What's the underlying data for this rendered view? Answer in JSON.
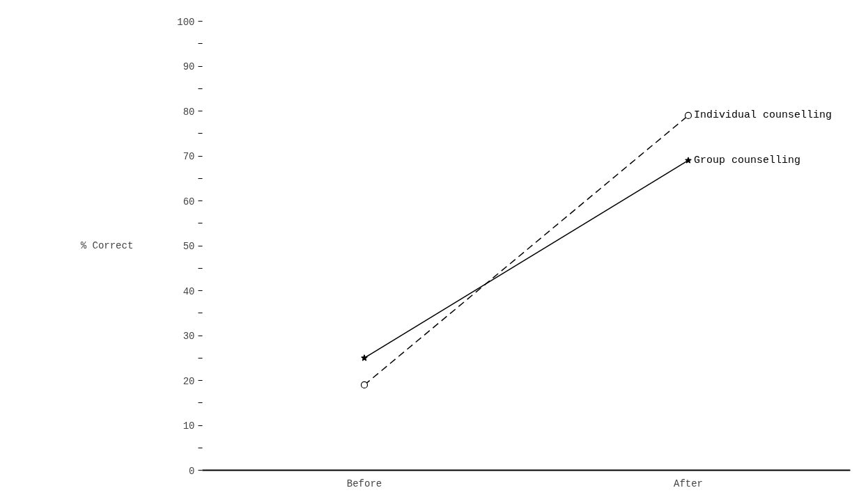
{
  "chart_data": {
    "type": "line",
    "ylabel": "% Correct",
    "categories": [
      "Before",
      "After"
    ],
    "series": [
      {
        "name": "Individual counselling",
        "color": "#000000",
        "values": [
          19,
          79
        ],
        "marker": "circle",
        "line_style": "dashed"
      },
      {
        "name": "Group counselling",
        "color": "#000000",
        "values": [
          25,
          69
        ],
        "marker": "star",
        "line_style": "solid"
      }
    ],
    "ylim": [
      0,
      100
    ],
    "yticks": [
      0,
      {
        "value": 5,
        "label": null
      },
      10,
      {
        "value": 15,
        "label": null
      },
      20,
      {
        "value": 25,
        "label": null
      },
      30,
      {
        "value": 35,
        "label": null
      },
      40,
      {
        "value": 45,
        "label": null
      },
      50,
      {
        "value": 55,
        "label": null
      },
      60,
      {
        "value": 65,
        "label": null
      },
      70,
      {
        "value": 75,
        "label": null
      },
      80,
      {
        "value": 85,
        "label": null
      },
      90,
      {
        "value": 95,
        "label": null
      },
      100
    ],
    "grid": false,
    "legend": "right"
  }
}
